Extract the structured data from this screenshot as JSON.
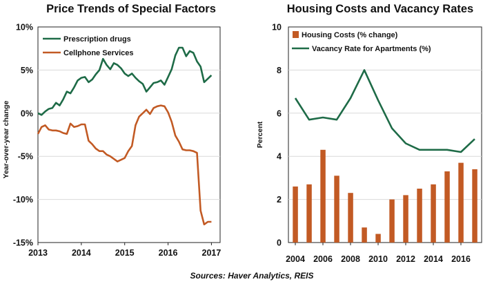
{
  "source_note": "Sources: Haver Analytics, REIS",
  "colors": {
    "green": "#1e6b47",
    "orange": "#c25a24"
  },
  "chart_data": [
    {
      "type": "line",
      "title": "Price Trends of Special Factors",
      "xlabel": "",
      "ylabel": "Year-over-year change",
      "xlim": [
        2013,
        2017.2
      ],
      "ylim": [
        -15,
        10
      ],
      "x_ticks": [
        2013,
        2014,
        2015,
        2016,
        2017
      ],
      "x_tick_labels": [
        "2013",
        "2014",
        "2015",
        "2016",
        "2017"
      ],
      "y_ticks": [
        10,
        5,
        0,
        -5,
        -10,
        -15
      ],
      "y_tick_labels": [
        "10%",
        "5%",
        "0%",
        "-5%",
        "-10%",
        "-15%"
      ],
      "grid": true,
      "legend": "top-left",
      "series": [
        {
          "name": "Prescription drugs",
          "color": "#1e6b47",
          "x": [
            2013.0,
            2013.083,
            2013.167,
            2013.25,
            2013.333,
            2013.417,
            2013.5,
            2013.583,
            2013.667,
            2013.75,
            2013.833,
            2013.917,
            2014.0,
            2014.083,
            2014.167,
            2014.25,
            2014.333,
            2014.417,
            2014.5,
            2014.583,
            2014.667,
            2014.75,
            2014.833,
            2014.917,
            2015.0,
            2015.083,
            2015.167,
            2015.25,
            2015.333,
            2015.417,
            2015.5,
            2015.583,
            2015.667,
            2015.75,
            2015.833,
            2015.917,
            2016.0,
            2016.083,
            2016.167,
            2016.25,
            2016.333,
            2016.417,
            2016.5,
            2016.583,
            2016.667,
            2016.75,
            2016.833,
            2016.917,
            2017.0
          ],
          "values": [
            0.0,
            -0.2,
            0.2,
            0.5,
            0.6,
            1.2,
            0.9,
            1.6,
            2.5,
            2.3,
            3.0,
            3.8,
            4.1,
            4.2,
            3.6,
            3.9,
            4.5,
            5.0,
            6.3,
            5.6,
            5.1,
            5.8,
            5.6,
            5.2,
            4.6,
            4.3,
            4.6,
            4.1,
            3.7,
            3.4,
            2.5,
            3.0,
            3.5,
            3.6,
            3.8,
            3.3,
            4.2,
            5.1,
            6.7,
            7.6,
            7.6,
            6.6,
            7.2,
            7.0,
            6.0,
            5.4,
            3.6,
            4.0,
            4.4
          ]
        },
        {
          "name": "Cellphone Services",
          "color": "#c25a24",
          "x": [
            2013.0,
            2013.083,
            2013.167,
            2013.25,
            2013.333,
            2013.417,
            2013.5,
            2013.583,
            2013.667,
            2013.75,
            2013.833,
            2013.917,
            2014.0,
            2014.083,
            2014.167,
            2014.25,
            2014.333,
            2014.417,
            2014.5,
            2014.583,
            2014.667,
            2014.75,
            2014.833,
            2014.917,
            2015.0,
            2015.083,
            2015.167,
            2015.25,
            2015.333,
            2015.417,
            2015.5,
            2015.583,
            2015.667,
            2015.75,
            2015.833,
            2015.917,
            2016.0,
            2016.083,
            2016.167,
            2016.25,
            2016.333,
            2016.417,
            2016.5,
            2016.583,
            2016.667,
            2016.75,
            2016.833,
            2016.917,
            2017.0
          ],
          "values": [
            -2.4,
            -1.6,
            -1.4,
            -1.9,
            -2.0,
            -2.0,
            -2.1,
            -2.3,
            -2.4,
            -1.2,
            -1.6,
            -1.5,
            -1.3,
            -1.3,
            -3.2,
            -3.6,
            -4.1,
            -4.4,
            -4.4,
            -4.8,
            -5.0,
            -5.3,
            -5.6,
            -5.4,
            -5.2,
            -4.4,
            -3.8,
            -1.4,
            -0.4,
            0.0,
            0.4,
            -0.1,
            0.6,
            0.8,
            0.9,
            0.8,
            0.1,
            -1.0,
            -2.6,
            -3.3,
            -4.2,
            -4.3,
            -4.3,
            -4.4,
            -4.6,
            -11.3,
            -12.9,
            -12.6,
            -12.6
          ]
        }
      ]
    },
    {
      "type": "bar+line",
      "title": "Housing Costs and Vacancy Rates",
      "xlabel": "",
      "ylabel": "Percent",
      "xlim": [
        2003.5,
        2017.5
      ],
      "ylim": [
        0,
        10
      ],
      "x_ticks": [
        2004,
        2006,
        2008,
        2010,
        2012,
        2014,
        2016
      ],
      "x_tick_labels": [
        "2004",
        "2006",
        "2008",
        "2010",
        "2012",
        "2014",
        "2016"
      ],
      "y_ticks": [
        10,
        8,
        6,
        4,
        2,
        0
      ],
      "y_tick_labels": [
        "10",
        "8",
        "6",
        "4",
        "2",
        "0"
      ],
      "grid": true,
      "legend": "top",
      "categories": [
        2004,
        2005,
        2006,
        2007,
        2008,
        2009,
        2010,
        2011,
        2012,
        2013,
        2014,
        2015,
        2016,
        2017
      ],
      "series": [
        {
          "name": "Housing Costs (% change)",
          "type": "bar",
          "color": "#c25a24",
          "values": [
            2.6,
            2.7,
            4.3,
            3.1,
            2.3,
            0.7,
            0.4,
            2.0,
            2.2,
            2.5,
            2.7,
            3.3,
            3.7,
            3.4
          ]
        },
        {
          "name": "Vacancy Rate  for Apartments (%)",
          "type": "line",
          "color": "#1e6b47",
          "values": [
            6.7,
            5.7,
            5.8,
            5.7,
            6.7,
            8.0,
            6.6,
            5.3,
            4.6,
            4.3,
            4.3,
            4.3,
            4.2,
            4.8
          ]
        }
      ]
    }
  ]
}
